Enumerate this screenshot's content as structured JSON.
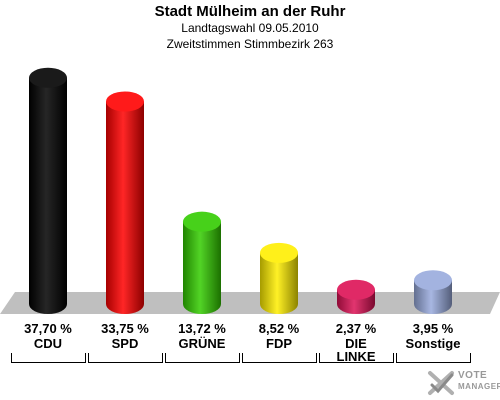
{
  "header": {
    "title": "Stadt Mülheim an der Ruhr",
    "subtitle1": "Landtagswahl 09.05.2010",
    "subtitle2": "Zweitstimmen Stimmbezirk 263"
  },
  "chart_data": {
    "type": "bar",
    "title": "Stadt Mülheim an der Ruhr",
    "subtitle": "Landtagswahl 09.05.2010 — Zweitstimmen Stimmbezirk 263",
    "categories": [
      "CDU",
      "SPD",
      "GRÜNE",
      "FDP",
      "DIE LINKE",
      "Sonstige"
    ],
    "category_lines": [
      [
        "CDU"
      ],
      [
        "SPD"
      ],
      [
        "GRÜNE"
      ],
      [
        "FDP"
      ],
      [
        "DIE",
        "LINKE"
      ],
      [
        "Sonstige"
      ]
    ],
    "values": [
      37.7,
      33.75,
      13.72,
      8.52,
      2.37,
      3.95
    ],
    "value_labels": [
      "37,70 %",
      "33,75 %",
      "13,72 %",
      "8,52 %",
      "2,37 %",
      "3,95 %"
    ],
    "colors": [
      "#000000",
      "#ff0000",
      "#33cc00",
      "#ffee00",
      "#dd1155",
      "#99aadd"
    ],
    "ylim": [
      0,
      40
    ],
    "grid": false,
    "legend": "none"
  },
  "logo": {
    "line1": "VOTE",
    "line2": "MANAGER"
  }
}
